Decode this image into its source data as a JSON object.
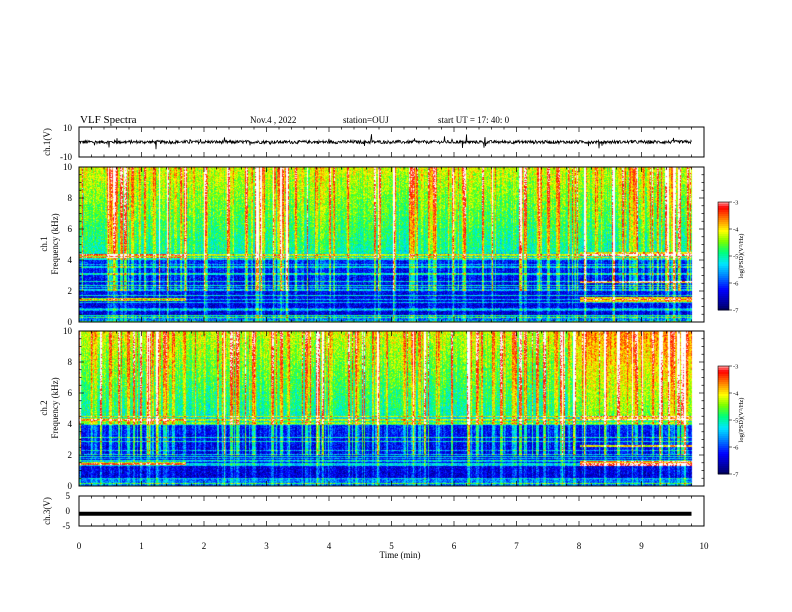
{
  "header": {
    "title": "VLF Spectra",
    "date": "Nov.4  , 2022",
    "station": "station=OUJ",
    "start": "start  UT  =   17: 40: 0"
  },
  "chart_data": [
    {
      "type": "line",
      "id": "ch1-waveform",
      "ylabel": "ch.1(V)",
      "ylim": [
        -10,
        10
      ],
      "yticklabels": [
        "10",
        "-10"
      ],
      "x": [
        0,
        1,
        2,
        3,
        4,
        5,
        6,
        7,
        8,
        9,
        9.8
      ],
      "baseline": 0,
      "noise_amplitude": 1.2
    },
    {
      "type": "heatmap",
      "id": "ch1-spectrogram",
      "ylabel": "ch.1\nFrequency  (kHz)",
      "ylabel_line1": "ch.1",
      "ylabel_line2": "Frequency  (kHz)",
      "ylim": [
        0,
        10
      ],
      "yticks": [
        0,
        2,
        4,
        6,
        8,
        10
      ],
      "xlim": [
        0,
        10
      ],
      "data_end_min": 9.8,
      "colorbar": {
        "label": "log(PSD)(V²/Hz)",
        "range": [
          -7,
          -3
        ],
        "ticks": [
          -3,
          -4,
          -5,
          -6,
          -7
        ]
      }
    },
    {
      "type": "heatmap",
      "id": "ch2-spectrogram",
      "ylabel_line1": "ch.2",
      "ylabel_line2": "Frequency  (kHz)",
      "ylim": [
        0,
        10
      ],
      "yticks": [
        0,
        2,
        4,
        6,
        8,
        10
      ],
      "xlim": [
        0,
        10
      ],
      "data_end_min": 9.8,
      "colorbar": {
        "label": "log(PSD)(V²/Hz)",
        "range": [
          -7,
          -3
        ],
        "ticks": [
          -3,
          -4,
          -5,
          -6,
          -7
        ]
      }
    },
    {
      "type": "line",
      "id": "ch3-waveform",
      "ylabel": "ch.3(V)",
      "ylim": [
        -5,
        5
      ],
      "yticklabels": [
        "5",
        "0",
        "-5"
      ],
      "x": [
        0,
        9.8
      ],
      "values": [
        -0.9,
        -0.9
      ]
    }
  ],
  "xaxis": {
    "label": "Time  (min)",
    "ticks": [
      "0",
      "1",
      "2",
      "3",
      "4",
      "5",
      "6",
      "7",
      "8",
      "9",
      "10"
    ],
    "range": [
      0,
      10
    ]
  },
  "colors": {
    "colormap": [
      "#000080",
      "#0000ff",
      "#0080ff",
      "#00ffff",
      "#00ff80",
      "#80ff00",
      "#ffff00",
      "#ff8000",
      "#ff0000",
      "#ffffff"
    ]
  }
}
